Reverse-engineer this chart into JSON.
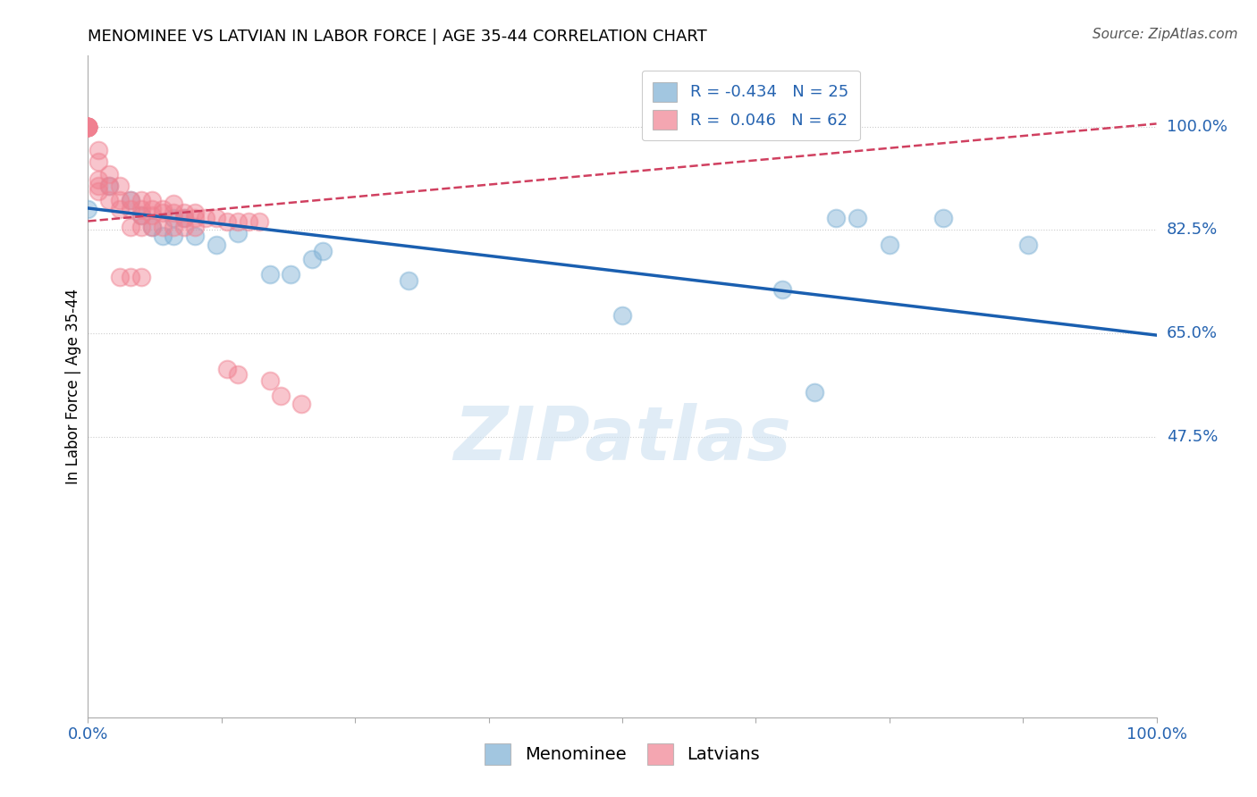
{
  "title": "MENOMINEE VS LATVIAN IN LABOR FORCE | AGE 35-44 CORRELATION CHART",
  "source": "Source: ZipAtlas.com",
  "ylabel": "In Labor Force | Age 35-44",
  "menominee_color": "#7bafd4",
  "latvian_color": "#f08090",
  "blue_line_color": "#1a5fb0",
  "pink_line_color": "#d04060",
  "watermark": "ZIPatlas",
  "ytick_values": [
    1.0,
    0.825,
    0.65,
    0.475
  ],
  "ytick_labels": [
    "100.0%",
    "82.5%",
    "65.0%",
    "47.5%"
  ],
  "xlim": [
    0.0,
    1.0
  ],
  "ylim": [
    0.0,
    1.12
  ],
  "blue_line_x0": 0.0,
  "blue_line_y0": 0.862,
  "blue_line_x1": 1.0,
  "blue_line_y1": 0.647,
  "pink_line_x0": 0.0,
  "pink_line_y0": 0.84,
  "pink_line_x1": 1.0,
  "pink_line_y1": 1.005,
  "menominee_x": [
    0.0,
    0.02,
    0.04,
    0.05,
    0.06,
    0.07,
    0.08,
    0.08,
    0.09,
    0.1,
    0.12,
    0.14,
    0.17,
    0.19,
    0.21,
    0.22,
    0.3,
    0.5,
    0.7,
    0.72,
    0.75,
    0.8,
    0.88,
    0.65,
    0.68
  ],
  "menominee_y": [
    0.86,
    0.9,
    0.875,
    0.85,
    0.83,
    0.815,
    0.845,
    0.815,
    0.845,
    0.815,
    0.8,
    0.82,
    0.75,
    0.75,
    0.775,
    0.79,
    0.74,
    0.68,
    0.845,
    0.845,
    0.8,
    0.845,
    0.8,
    0.725,
    0.55
  ],
  "latvian_x": [
    0.0,
    0.0,
    0.0,
    0.0,
    0.0,
    0.0,
    0.0,
    0.0,
    0.0,
    0.0,
    0.0,
    0.0,
    0.0,
    0.01,
    0.01,
    0.01,
    0.01,
    0.01,
    0.02,
    0.02,
    0.02,
    0.03,
    0.03,
    0.03,
    0.04,
    0.04,
    0.05,
    0.05,
    0.05,
    0.06,
    0.06,
    0.06,
    0.07,
    0.07,
    0.08,
    0.08,
    0.09,
    0.09,
    0.1,
    0.1,
    0.11,
    0.12,
    0.13,
    0.14,
    0.15,
    0.16,
    0.04,
    0.05,
    0.06,
    0.07,
    0.08,
    0.09,
    0.1,
    0.03,
    0.04,
    0.05,
    0.13,
    0.14,
    0.17,
    0.18,
    0.2
  ],
  "latvian_y": [
    1.0,
    1.0,
    1.0,
    1.0,
    1.0,
    1.0,
    1.0,
    1.0,
    1.0,
    1.0,
    1.0,
    1.0,
    1.0,
    0.96,
    0.94,
    0.91,
    0.9,
    0.89,
    0.92,
    0.9,
    0.875,
    0.9,
    0.875,
    0.86,
    0.875,
    0.86,
    0.875,
    0.86,
    0.85,
    0.875,
    0.86,
    0.85,
    0.86,
    0.855,
    0.87,
    0.855,
    0.855,
    0.845,
    0.855,
    0.845,
    0.845,
    0.845,
    0.84,
    0.84,
    0.84,
    0.84,
    0.83,
    0.83,
    0.83,
    0.83,
    0.83,
    0.83,
    0.83,
    0.745,
    0.745,
    0.745,
    0.59,
    0.58,
    0.57,
    0.545,
    0.53
  ]
}
